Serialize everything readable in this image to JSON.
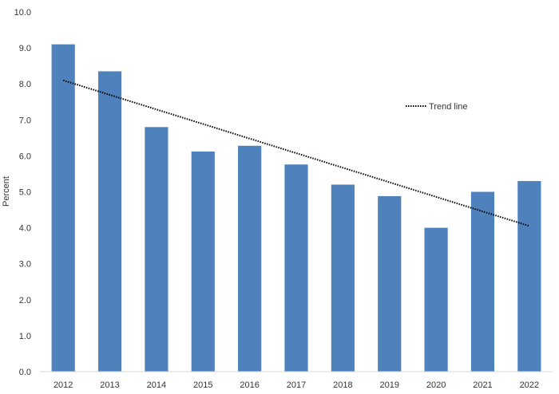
{
  "chart_data": {
    "type": "bar",
    "title": "",
    "xlabel": "",
    "ylabel": "Percent",
    "ylim": [
      0,
      10
    ],
    "yticks": [
      "0.0",
      "1.0",
      "2.0",
      "3.0",
      "4.0",
      "5.0",
      "6.0",
      "7.0",
      "8.0",
      "9.0",
      "10.0"
    ],
    "categories": [
      "2012",
      "2013",
      "2014",
      "2015",
      "2016",
      "2017",
      "2018",
      "2019",
      "2020",
      "2021",
      "2022"
    ],
    "values": [
      9.1,
      8.35,
      6.8,
      6.12,
      6.28,
      5.76,
      5.2,
      4.88,
      4.0,
      5.0,
      5.3
    ],
    "bar_color": "#4f81bd",
    "trend_line": {
      "label": "Trend line",
      "start": 8.1,
      "end": 4.05,
      "color": "#000000",
      "style": "dotted"
    },
    "grid": false,
    "legend_position": "right"
  }
}
